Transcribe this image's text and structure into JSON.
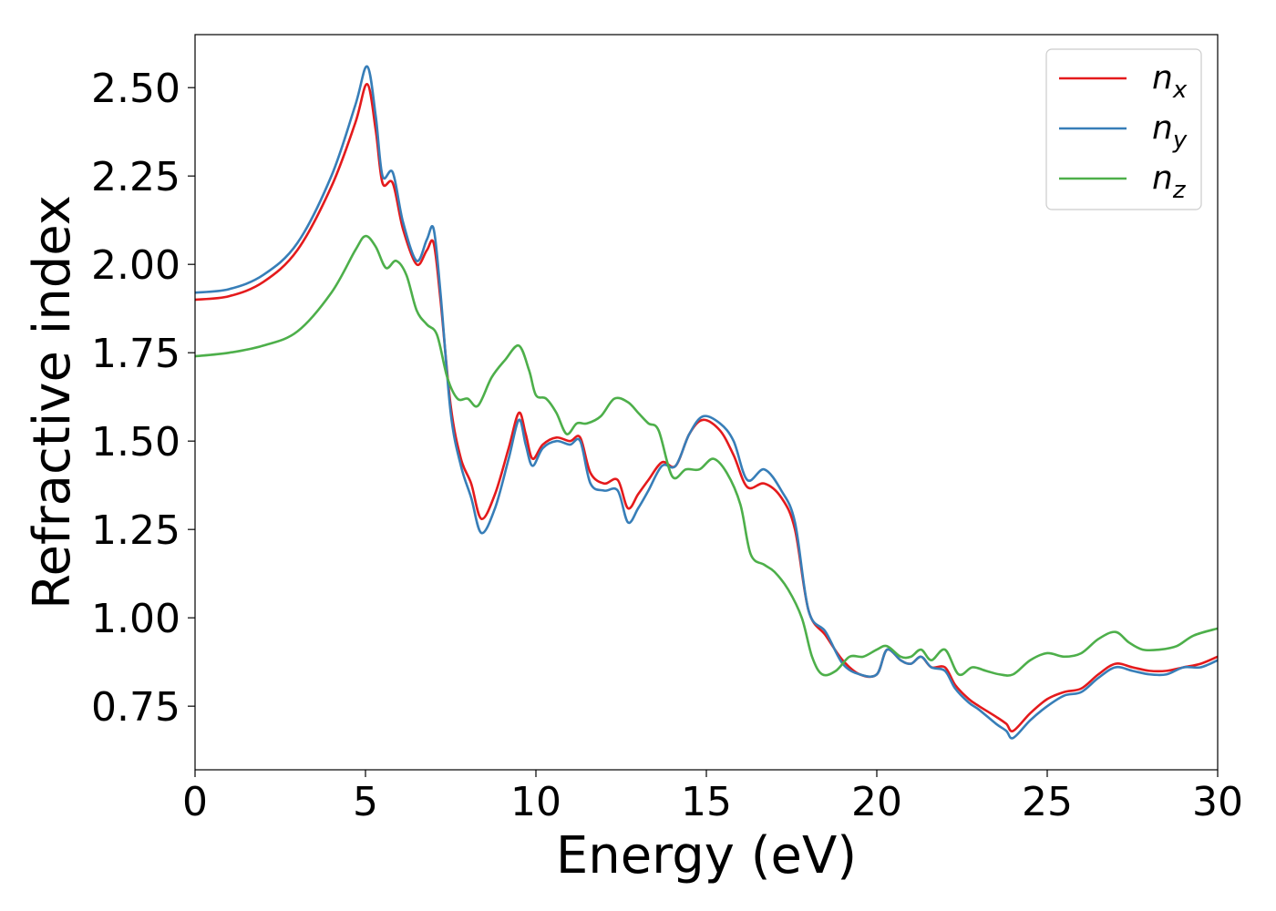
{
  "chart_data": {
    "type": "line",
    "title": "",
    "xlabel": "Energy (eV)",
    "ylabel": "Refractive index",
    "xlim": [
      0,
      30
    ],
    "ylim": [
      0.57,
      2.65
    ],
    "xticks": [
      0,
      5,
      10,
      15,
      20,
      25,
      30
    ],
    "xtick_labels": [
      "0",
      "5",
      "10",
      "15",
      "20",
      "25",
      "30"
    ],
    "yticks": [
      0.75,
      1.0,
      1.25,
      1.5,
      1.75,
      2.0,
      2.25,
      2.5
    ],
    "ytick_labels": [
      "0.75",
      "1.00",
      "1.25",
      "1.50",
      "1.75",
      "2.00",
      "2.25",
      "2.50"
    ],
    "grid": false,
    "legend_position": "top-right",
    "series": [
      {
        "name": "n_x",
        "legend_base": "n",
        "legend_sub": "x",
        "color": "#e41a1c",
        "points": [
          [
            0,
            1.9
          ],
          [
            1,
            1.91
          ],
          [
            2,
            1.95
          ],
          [
            3,
            2.04
          ],
          [
            4,
            2.22
          ],
          [
            4.7,
            2.4
          ],
          [
            5.05,
            2.51
          ],
          [
            5.3,
            2.38
          ],
          [
            5.5,
            2.23
          ],
          [
            5.8,
            2.23
          ],
          [
            6.1,
            2.1
          ],
          [
            6.5,
            2.0
          ],
          [
            6.8,
            2.04
          ],
          [
            7.0,
            2.06
          ],
          [
            7.2,
            1.9
          ],
          [
            7.5,
            1.6
          ],
          [
            7.8,
            1.45
          ],
          [
            8.1,
            1.38
          ],
          [
            8.4,
            1.28
          ],
          [
            8.8,
            1.35
          ],
          [
            9.2,
            1.48
          ],
          [
            9.5,
            1.58
          ],
          [
            9.7,
            1.52
          ],
          [
            9.9,
            1.45
          ],
          [
            10.2,
            1.49
          ],
          [
            10.6,
            1.51
          ],
          [
            11.0,
            1.5
          ],
          [
            11.3,
            1.51
          ],
          [
            11.6,
            1.41
          ],
          [
            12.0,
            1.38
          ],
          [
            12.4,
            1.39
          ],
          [
            12.7,
            1.31
          ],
          [
            13.0,
            1.35
          ],
          [
            13.3,
            1.39
          ],
          [
            13.7,
            1.44
          ],
          [
            14.1,
            1.43
          ],
          [
            14.5,
            1.52
          ],
          [
            14.9,
            1.56
          ],
          [
            15.4,
            1.53
          ],
          [
            15.8,
            1.46
          ],
          [
            16.2,
            1.37
          ],
          [
            16.7,
            1.38
          ],
          [
            17.2,
            1.34
          ],
          [
            17.6,
            1.25
          ],
          [
            18.0,
            1.02
          ],
          [
            18.5,
            0.95
          ],
          [
            19.0,
            0.88
          ],
          [
            19.5,
            0.84
          ],
          [
            20.0,
            0.84
          ],
          [
            20.3,
            0.91
          ],
          [
            20.7,
            0.88
          ],
          [
            21.0,
            0.87
          ],
          [
            21.3,
            0.89
          ],
          [
            21.6,
            0.86
          ],
          [
            22.0,
            0.86
          ],
          [
            22.3,
            0.81
          ],
          [
            22.7,
            0.77
          ],
          [
            23.0,
            0.75
          ],
          [
            23.5,
            0.72
          ],
          [
            23.8,
            0.7
          ],
          [
            24.0,
            0.68
          ],
          [
            24.5,
            0.73
          ],
          [
            25.0,
            0.77
          ],
          [
            25.5,
            0.79
          ],
          [
            26.0,
            0.8
          ],
          [
            26.5,
            0.84
          ],
          [
            27.0,
            0.87
          ],
          [
            27.5,
            0.86
          ],
          [
            28.0,
            0.85
          ],
          [
            28.5,
            0.85
          ],
          [
            29.0,
            0.86
          ],
          [
            29.5,
            0.87
          ],
          [
            30,
            0.89
          ]
        ]
      },
      {
        "name": "n_y",
        "legend_base": "n",
        "legend_sub": "y",
        "color": "#377eb8",
        "points": [
          [
            0,
            1.92
          ],
          [
            1,
            1.93
          ],
          [
            2,
            1.97
          ],
          [
            3,
            2.06
          ],
          [
            4,
            2.25
          ],
          [
            4.7,
            2.45
          ],
          [
            5.05,
            2.56
          ],
          [
            5.3,
            2.42
          ],
          [
            5.5,
            2.25
          ],
          [
            5.8,
            2.26
          ],
          [
            6.1,
            2.12
          ],
          [
            6.5,
            2.01
          ],
          [
            6.8,
            2.07
          ],
          [
            7.0,
            2.1
          ],
          [
            7.2,
            1.92
          ],
          [
            7.5,
            1.58
          ],
          [
            7.8,
            1.43
          ],
          [
            8.1,
            1.34
          ],
          [
            8.4,
            1.24
          ],
          [
            8.8,
            1.31
          ],
          [
            9.2,
            1.45
          ],
          [
            9.5,
            1.56
          ],
          [
            9.7,
            1.49
          ],
          [
            9.9,
            1.43
          ],
          [
            10.2,
            1.48
          ],
          [
            10.6,
            1.5
          ],
          [
            11.0,
            1.49
          ],
          [
            11.3,
            1.5
          ],
          [
            11.6,
            1.38
          ],
          [
            12.0,
            1.36
          ],
          [
            12.4,
            1.36
          ],
          [
            12.7,
            1.27
          ],
          [
            13.0,
            1.31
          ],
          [
            13.3,
            1.36
          ],
          [
            13.7,
            1.43
          ],
          [
            14.1,
            1.43
          ],
          [
            14.5,
            1.52
          ],
          [
            14.9,
            1.57
          ],
          [
            15.4,
            1.55
          ],
          [
            15.8,
            1.5
          ],
          [
            16.2,
            1.39
          ],
          [
            16.7,
            1.42
          ],
          [
            17.2,
            1.36
          ],
          [
            17.6,
            1.27
          ],
          [
            18.0,
            1.02
          ],
          [
            18.5,
            0.96
          ],
          [
            19.0,
            0.87
          ],
          [
            19.5,
            0.84
          ],
          [
            20.0,
            0.84
          ],
          [
            20.3,
            0.91
          ],
          [
            20.7,
            0.88
          ],
          [
            21.0,
            0.87
          ],
          [
            21.3,
            0.89
          ],
          [
            21.6,
            0.86
          ],
          [
            22.0,
            0.85
          ],
          [
            22.3,
            0.8
          ],
          [
            22.7,
            0.76
          ],
          [
            23.0,
            0.74
          ],
          [
            23.5,
            0.7
          ],
          [
            23.8,
            0.68
          ],
          [
            24.0,
            0.66
          ],
          [
            24.5,
            0.71
          ],
          [
            25.0,
            0.75
          ],
          [
            25.5,
            0.78
          ],
          [
            26.0,
            0.79
          ],
          [
            26.5,
            0.83
          ],
          [
            27.0,
            0.86
          ],
          [
            27.5,
            0.85
          ],
          [
            28.0,
            0.84
          ],
          [
            28.5,
            0.84
          ],
          [
            29.0,
            0.86
          ],
          [
            29.5,
            0.86
          ],
          [
            30,
            0.88
          ]
        ]
      },
      {
        "name": "n_z",
        "legend_base": "n",
        "legend_sub": "z",
        "color": "#4daf4a",
        "points": [
          [
            0,
            1.74
          ],
          [
            1,
            1.75
          ],
          [
            2,
            1.77
          ],
          [
            3,
            1.81
          ],
          [
            4,
            1.92
          ],
          [
            4.7,
            2.04
          ],
          [
            5.0,
            2.08
          ],
          [
            5.3,
            2.05
          ],
          [
            5.6,
            1.99
          ],
          [
            5.9,
            2.01
          ],
          [
            6.2,
            1.97
          ],
          [
            6.5,
            1.87
          ],
          [
            6.8,
            1.83
          ],
          [
            7.1,
            1.8
          ],
          [
            7.4,
            1.68
          ],
          [
            7.7,
            1.62
          ],
          [
            8.0,
            1.62
          ],
          [
            8.3,
            1.6
          ],
          [
            8.7,
            1.68
          ],
          [
            9.1,
            1.73
          ],
          [
            9.5,
            1.77
          ],
          [
            9.8,
            1.7
          ],
          [
            10.0,
            1.63
          ],
          [
            10.3,
            1.62
          ],
          [
            10.6,
            1.58
          ],
          [
            10.9,
            1.52
          ],
          [
            11.2,
            1.55
          ],
          [
            11.5,
            1.55
          ],
          [
            11.9,
            1.57
          ],
          [
            12.3,
            1.62
          ],
          [
            12.7,
            1.61
          ],
          [
            13.0,
            1.58
          ],
          [
            13.3,
            1.55
          ],
          [
            13.6,
            1.53
          ],
          [
            14.0,
            1.4
          ],
          [
            14.4,
            1.42
          ],
          [
            14.8,
            1.42
          ],
          [
            15.2,
            1.45
          ],
          [
            15.6,
            1.41
          ],
          [
            16.0,
            1.32
          ],
          [
            16.3,
            1.18
          ],
          [
            16.7,
            1.15
          ],
          [
            17.0,
            1.13
          ],
          [
            17.4,
            1.08
          ],
          [
            17.8,
            1.0
          ],
          [
            18.1,
            0.89
          ],
          [
            18.4,
            0.84
          ],
          [
            18.8,
            0.85
          ],
          [
            19.2,
            0.89
          ],
          [
            19.6,
            0.89
          ],
          [
            20.0,
            0.91
          ],
          [
            20.3,
            0.92
          ],
          [
            20.7,
            0.89
          ],
          [
            21.0,
            0.89
          ],
          [
            21.3,
            0.91
          ],
          [
            21.6,
            0.88
          ],
          [
            22.0,
            0.91
          ],
          [
            22.4,
            0.84
          ],
          [
            22.8,
            0.86
          ],
          [
            23.2,
            0.85
          ],
          [
            23.6,
            0.84
          ],
          [
            24.0,
            0.84
          ],
          [
            24.5,
            0.88
          ],
          [
            25.0,
            0.9
          ],
          [
            25.5,
            0.89
          ],
          [
            26.0,
            0.9
          ],
          [
            26.5,
            0.94
          ],
          [
            27.0,
            0.96
          ],
          [
            27.4,
            0.93
          ],
          [
            27.8,
            0.91
          ],
          [
            28.3,
            0.91
          ],
          [
            28.8,
            0.92
          ],
          [
            29.3,
            0.95
          ],
          [
            30,
            0.97
          ]
        ]
      }
    ]
  }
}
